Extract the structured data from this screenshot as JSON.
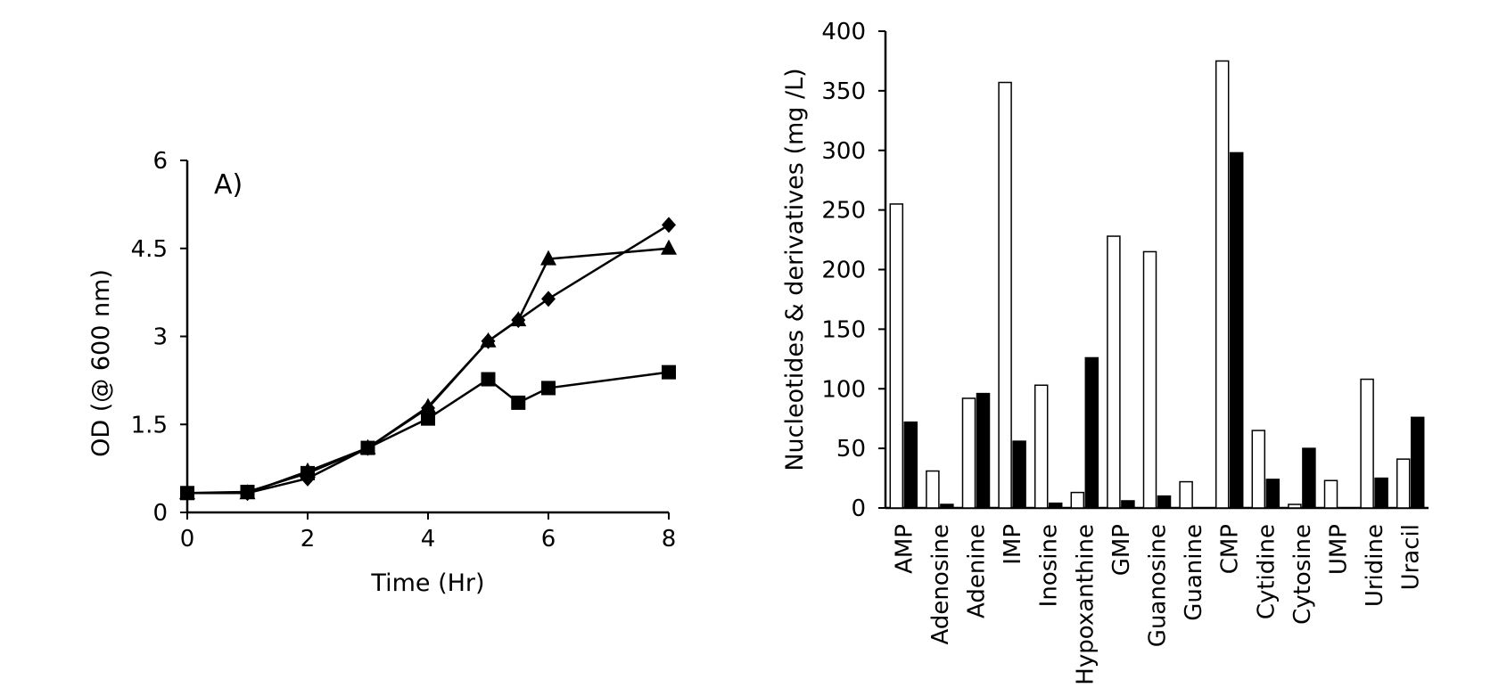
{
  "chart_data": [
    {
      "type": "line",
      "panel_label": "A)",
      "title": "",
      "xlabel": "Time (Hr)",
      "ylabel": "OD (@ 600 nm)",
      "xlim": [
        0,
        8
      ],
      "ylim": [
        0,
        6
      ],
      "xticks": [
        0,
        2,
        4,
        6,
        8
      ],
      "yticks": [
        0,
        1.5,
        3,
        4.5,
        6
      ],
      "xtick_labels": [
        "0",
        "2",
        "4",
        "6",
        "8"
      ],
      "ytick_labels": [
        "0",
        "1.5",
        "3",
        "4.5",
        "6"
      ],
      "grid": false,
      "series": [
        {
          "marker": "diamond",
          "color": "#000000",
          "x": [
            0,
            1,
            2,
            3,
            4,
            5,
            5.5,
            6,
            8
          ],
          "y": [
            0.33,
            0.33,
            0.58,
            1.1,
            1.78,
            2.92,
            3.28,
            3.64,
            4.9
          ]
        },
        {
          "marker": "triangle",
          "color": "#000000",
          "x": [
            0,
            1,
            2,
            3,
            4,
            5,
            5.5,
            6,
            8
          ],
          "y": [
            0.33,
            0.33,
            0.7,
            1.1,
            1.8,
            2.92,
            3.28,
            4.32,
            4.5
          ]
        },
        {
          "marker": "square",
          "color": "#000000",
          "x": [
            0,
            1,
            2,
            3,
            4,
            5,
            5.5,
            6,
            8
          ],
          "y": [
            0.33,
            0.35,
            0.67,
            1.1,
            1.6,
            2.27,
            1.87,
            2.12,
            2.39
          ]
        }
      ]
    },
    {
      "type": "bar",
      "title": "",
      "xlabel": "",
      "ylabel": "Nucleotides & derivatives (mg /L)",
      "ylim": [
        0,
        400
      ],
      "yticks": [
        0,
        50,
        100,
        150,
        200,
        250,
        300,
        350,
        400
      ],
      "ytick_labels": [
        "0",
        "50",
        "100",
        "150",
        "200",
        "250",
        "300",
        "350",
        "400"
      ],
      "grid": false,
      "categories": [
        "AMP",
        "Adenosine",
        "Adenine",
        "IMP",
        "Inosine",
        "Hypoxanthine",
        "GMP",
        "Guanosine",
        "Guanine",
        "CMP",
        "Cytidine",
        "Cytosine",
        "UMP",
        "Uridine",
        "Uracil"
      ],
      "series": [
        {
          "fill": "#ffffff",
          "stroke": "#000000",
          "values": [
            255,
            31,
            92,
            357,
            103,
            13,
            228,
            215,
            22,
            375,
            65,
            3,
            23,
            108,
            41
          ]
        },
        {
          "fill": "#000000",
          "stroke": "#000000",
          "values": [
            72,
            3,
            96,
            56,
            4,
            126,
            6,
            10,
            0,
            298,
            24,
            50,
            0,
            25,
            76
          ]
        }
      ]
    }
  ]
}
